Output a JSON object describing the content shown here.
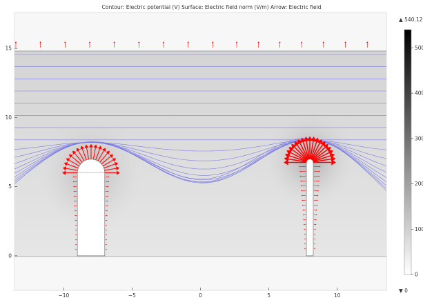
{
  "title": "Contour: Electric potential (V) Surface: Electric field norm (V/m) Arrow: Electric field",
  "chart_data": {
    "type": "heatmap",
    "title": "Contour: Electric potential (V) Surface: Electric field norm (V/m) Arrow: Electric field",
    "xlim": [
      -13.6,
      13.6
    ],
    "ylim": [
      -2.5,
      17.6
    ],
    "x_ticks": [
      -10,
      -5,
      0,
      5,
      10
    ],
    "y_ticks": [
      0,
      5,
      10,
      15
    ],
    "x_tick_labels": [
      "−10",
      "−5",
      "0",
      "5",
      "10"
    ],
    "y_tick_labels": [
      "0",
      "5",
      "10",
      "15"
    ],
    "colorbar": {
      "max_label": "▲ 540.12",
      "min_label": "▼ 0",
      "ticks": [
        0,
        100,
        200,
        300,
        400,
        500
      ],
      "tick_labels": [
        "0",
        "100",
        "200",
        "300",
        "400",
        "500"
      ],
      "colormap": "gray",
      "range": [
        0,
        540.12
      ]
    },
    "domain": {
      "x": [
        -13.6,
        13.6
      ],
      "y": [
        0,
        15
      ]
    },
    "electrodes": [
      {
        "name": "left",
        "x_left": -9,
        "x_right": -7,
        "top_center_y": 6,
        "tip_radius": 1
      },
      {
        "name": "right",
        "x_left": 7.75,
        "x_right": 8.25,
        "top_center_y": 6.75,
        "tip_radius": 0.25
      }
    ],
    "contour_count": 17,
    "top_boundary_arrows_x": [
      -13.5,
      -11.7,
      -9.9,
      -8.1,
      -6.3,
      -4.5,
      -2.7,
      -0.9,
      0.9,
      2.65,
      4.25,
      5.8,
      7.4,
      9,
      10.6,
      12.2
    ]
  },
  "colors": {
    "contour": "#7a7ae6",
    "arrow": "#ff0000",
    "axis": "#333333",
    "boundary": "#888888"
  }
}
